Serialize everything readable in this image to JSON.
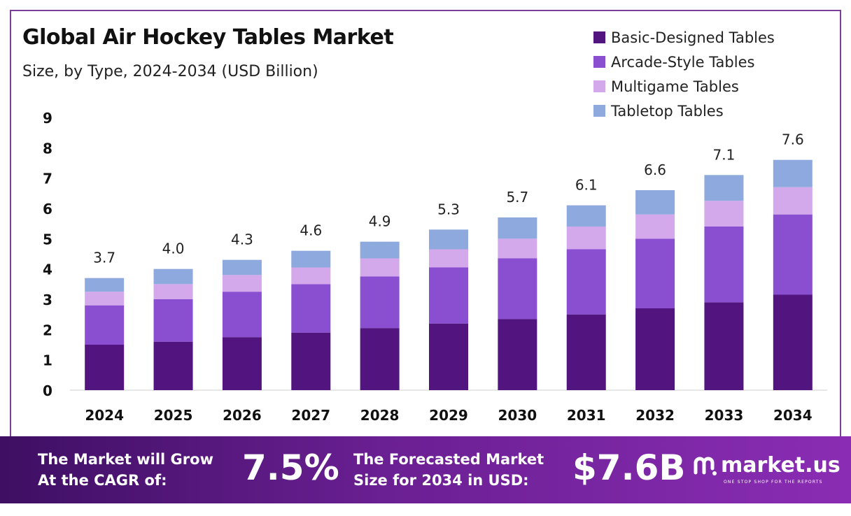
{
  "header": {
    "title": "Global Air Hockey Tables Market",
    "subtitle": "Size, by Type, 2024-2034 (USD Billion)"
  },
  "colors": {
    "basic": "#521580",
    "arcade": "#8a4fd1",
    "multigame": "#d3a9ec",
    "tabletop": "#8ea9dd",
    "frame": "#7b3f98"
  },
  "chart_data": {
    "type": "bar",
    "stacked": true,
    "categories": [
      "2024",
      "2025",
      "2026",
      "2027",
      "2028",
      "2029",
      "2030",
      "2031",
      "2032",
      "2033",
      "2034"
    ],
    "series": [
      {
        "name": "Basic-Designed Tables",
        "values": [
          1.5,
          1.6,
          1.75,
          1.9,
          2.05,
          2.2,
          2.35,
          2.5,
          2.7,
          2.9,
          3.15
        ]
      },
      {
        "name": "Arcade-Style Tables",
        "values": [
          1.3,
          1.4,
          1.5,
          1.6,
          1.7,
          1.85,
          2.0,
          2.15,
          2.3,
          2.5,
          2.65
        ]
      },
      {
        "name": "Multigame Tables",
        "values": [
          0.45,
          0.5,
          0.55,
          0.55,
          0.6,
          0.6,
          0.65,
          0.75,
          0.8,
          0.85,
          0.9
        ]
      },
      {
        "name": "Tabletop Tables",
        "values": [
          0.45,
          0.5,
          0.5,
          0.55,
          0.55,
          0.65,
          0.7,
          0.7,
          0.8,
          0.85,
          0.9
        ]
      }
    ],
    "totals": [
      "3.7",
      "4.0",
      "4.3",
      "4.6",
      "4.9",
      "5.3",
      "5.7",
      "6.1",
      "6.6",
      "7.1",
      "7.6"
    ],
    "yticks": [
      "0",
      "1",
      "2",
      "3",
      "4",
      "5",
      "6",
      "7",
      "8",
      "9"
    ],
    "ylim": [
      0,
      9
    ],
    "grid": false,
    "legend": "top-right"
  },
  "footer": {
    "cagr_text_1": "The Market will Grow",
    "cagr_text_2": "At the CAGR of:",
    "cagr_value": "7.5%",
    "forecast_text_1": "The Forecasted Market",
    "forecast_text_2": "Size for 2034 in USD:",
    "forecast_value": "$7.6B",
    "brand_name": "market.us",
    "brand_tagline": "ONE STOP SHOP FOR THE REPORTS"
  }
}
